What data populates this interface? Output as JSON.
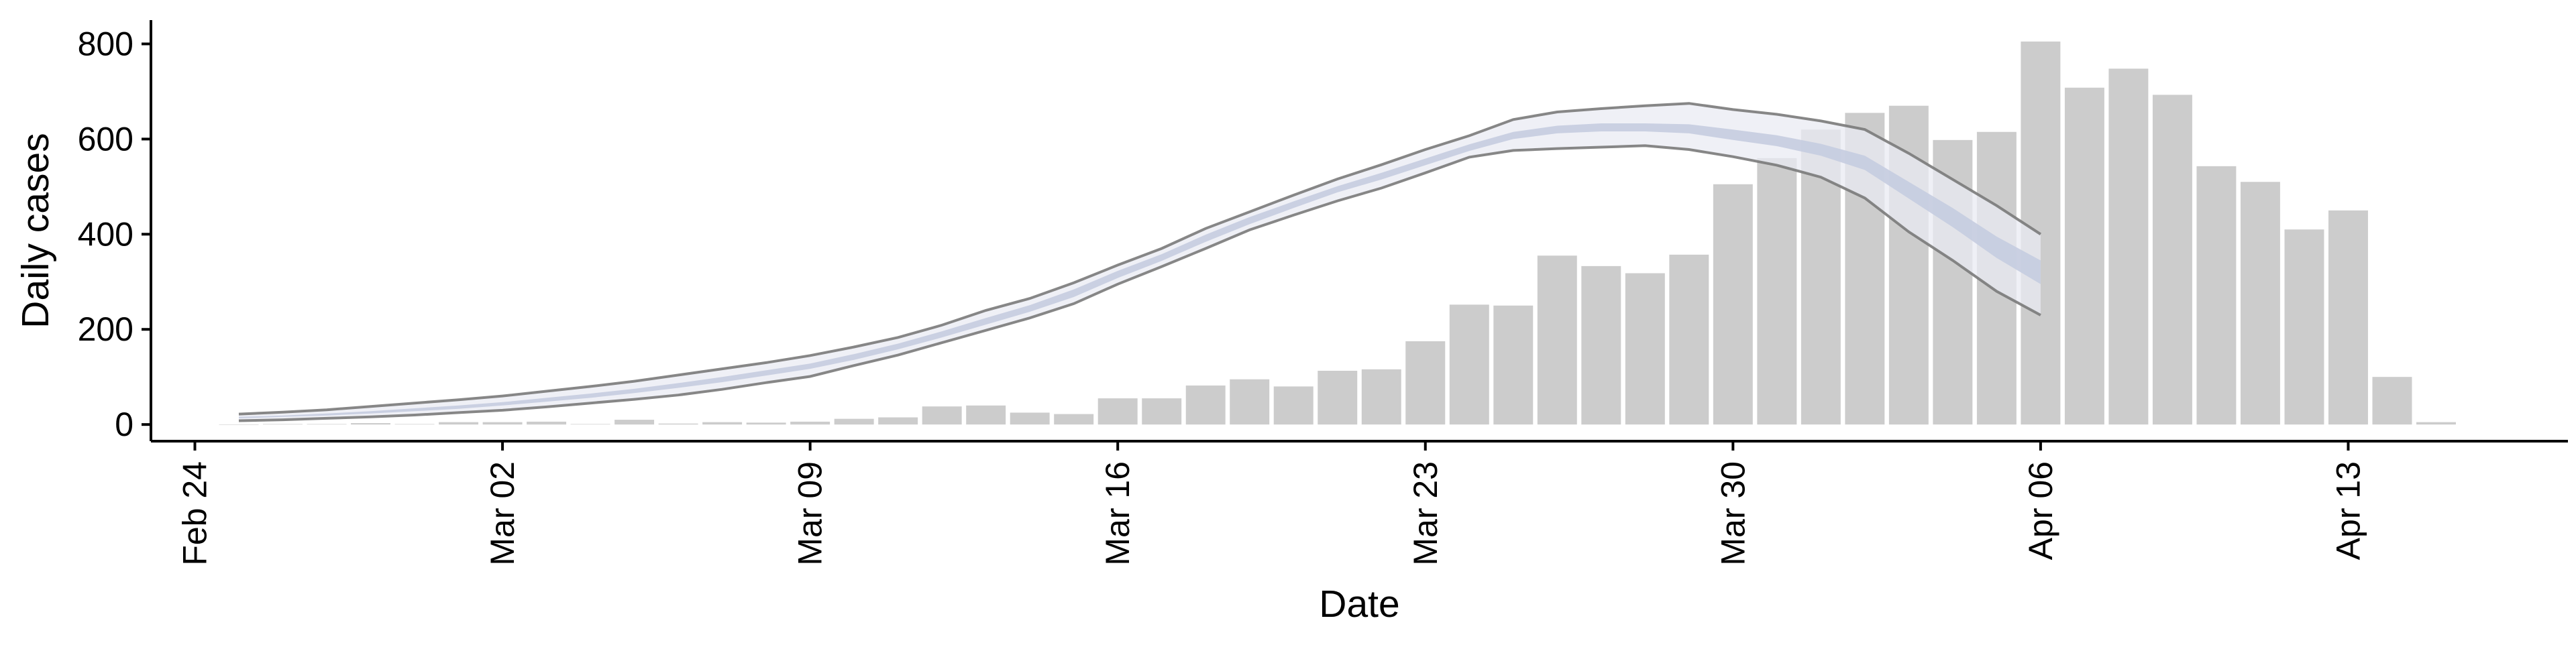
{
  "chart_data": {
    "type": "bar",
    "xlabel": "Date",
    "ylabel": "Daily cases",
    "ylim": [
      -35,
      850
    ],
    "y_ticks": [
      0,
      200,
      400,
      600,
      800
    ],
    "y_tick_labels": [
      "0",
      "200",
      "400",
      "600",
      "800"
    ],
    "x_ticks": [
      "2020-02-24",
      "2020-03-02",
      "2020-03-09",
      "2020-03-16",
      "2020-03-23",
      "2020-03-30",
      "2020-04-06",
      "2020-04-13"
    ],
    "x_tick_labels": [
      "Feb 24",
      "Mar 02",
      "Mar 09",
      "Mar 16",
      "Mar 23",
      "Mar 30",
      "Apr 06",
      "Apr 13"
    ],
    "x_range": [
      "2020-02-23",
      "2020-04-18"
    ],
    "grid": false,
    "colors": {
      "bars": "#cccccc",
      "band_fill": "#e9ebf3",
      "band_border": "#7a7a7a",
      "median_band": "#c5cce0",
      "axis": "#000000"
    },
    "bars": {
      "dates": [
        "2020-02-25",
        "2020-02-26",
        "2020-02-27",
        "2020-02-28",
        "2020-02-29",
        "2020-03-01",
        "2020-03-02",
        "2020-03-03",
        "2020-03-04",
        "2020-03-05",
        "2020-03-06",
        "2020-03-07",
        "2020-03-08",
        "2020-03-09",
        "2020-03-10",
        "2020-03-11",
        "2020-03-12",
        "2020-03-13",
        "2020-03-14",
        "2020-03-15",
        "2020-03-16",
        "2020-03-17",
        "2020-03-18",
        "2020-03-19",
        "2020-03-20",
        "2020-03-21",
        "2020-03-22",
        "2020-03-23",
        "2020-03-24",
        "2020-03-25",
        "2020-03-26",
        "2020-03-27",
        "2020-03-28",
        "2020-03-29",
        "2020-03-30",
        "2020-03-31",
        "2020-04-01",
        "2020-04-02",
        "2020-04-03",
        "2020-04-04",
        "2020-04-05",
        "2020-04-06",
        "2020-04-07",
        "2020-04-08",
        "2020-04-09",
        "2020-04-10",
        "2020-04-11",
        "2020-04-12",
        "2020-04-13",
        "2020-04-14",
        "2020-04-15"
      ],
      "values": [
        0,
        1,
        1,
        3,
        1,
        5,
        5,
        6,
        1,
        10,
        2,
        5,
        4,
        6,
        12,
        15,
        38,
        40,
        25,
        22,
        55,
        55,
        82,
        95,
        80,
        113,
        116,
        175,
        252,
        250,
        355,
        333,
        318,
        357,
        505,
        560,
        620,
        655,
        670,
        598,
        615,
        805,
        708,
        748,
        693,
        543,
        510,
        410,
        450,
        100,
        5
      ]
    },
    "forecast": {
      "dates": [
        "2020-02-25",
        "2020-02-26",
        "2020-02-27",
        "2020-02-28",
        "2020-02-29",
        "2020-03-01",
        "2020-03-02",
        "2020-03-03",
        "2020-03-04",
        "2020-03-05",
        "2020-03-06",
        "2020-03-07",
        "2020-03-08",
        "2020-03-09",
        "2020-03-10",
        "2020-03-11",
        "2020-03-12",
        "2020-03-13",
        "2020-03-14",
        "2020-03-15",
        "2020-03-16",
        "2020-03-17",
        "2020-03-18",
        "2020-03-19",
        "2020-03-20",
        "2020-03-21",
        "2020-03-22",
        "2020-03-23",
        "2020-03-24",
        "2020-03-25",
        "2020-03-26",
        "2020-03-27",
        "2020-03-28",
        "2020-03-29",
        "2020-03-30",
        "2020-03-31",
        "2020-04-01",
        "2020-04-02",
        "2020-04-03",
        "2020-04-04",
        "2020-04-05",
        "2020-04-06"
      ],
      "outer_upper": [
        22,
        26,
        31,
        38,
        45,
        52,
        60,
        70,
        80,
        91,
        104,
        117,
        130,
        145,
        163,
        183,
        209,
        240,
        265,
        298,
        335,
        370,
        412,
        447,
        482,
        516,
        546,
        578,
        607,
        641,
        657,
        664,
        670,
        675,
        662,
        652,
        638,
        620,
        570,
        515,
        460,
        400
      ],
      "outer_lower": [
        8,
        10,
        13,
        16,
        20,
        25,
        30,
        37,
        45,
        53,
        62,
        74,
        88,
        101,
        124,
        146,
        172,
        198,
        224,
        254,
        295,
        332,
        370,
        409,
        440,
        470,
        497,
        529,
        562,
        576,
        580,
        583,
        586,
        578,
        563,
        545,
        520,
        476,
        405,
        345,
        280,
        230
      ],
      "inner_upper": [
        16,
        19,
        23,
        28,
        34,
        40,
        47,
        56,
        65,
        75,
        87,
        100,
        114,
        128,
        148,
        170,
        196,
        224,
        251,
        284,
        323,
        358,
        399,
        436,
        469,
        501,
        529,
        559,
        589,
        615,
        628,
        633,
        633,
        631,
        620,
        608,
        590,
        565,
        510,
        455,
        395,
        345
      ],
      "inner_lower": [
        13,
        16,
        19,
        23,
        28,
        33,
        40,
        48,
        56,
        66,
        77,
        89,
        103,
        117,
        136,
        158,
        183,
        210,
        237,
        268,
        308,
        344,
        384,
        421,
        455,
        488,
        515,
        545,
        575,
        600,
        612,
        616,
        616,
        612,
        598,
        585,
        565,
        535,
        475,
        415,
        350,
        295
      ]
    }
  }
}
